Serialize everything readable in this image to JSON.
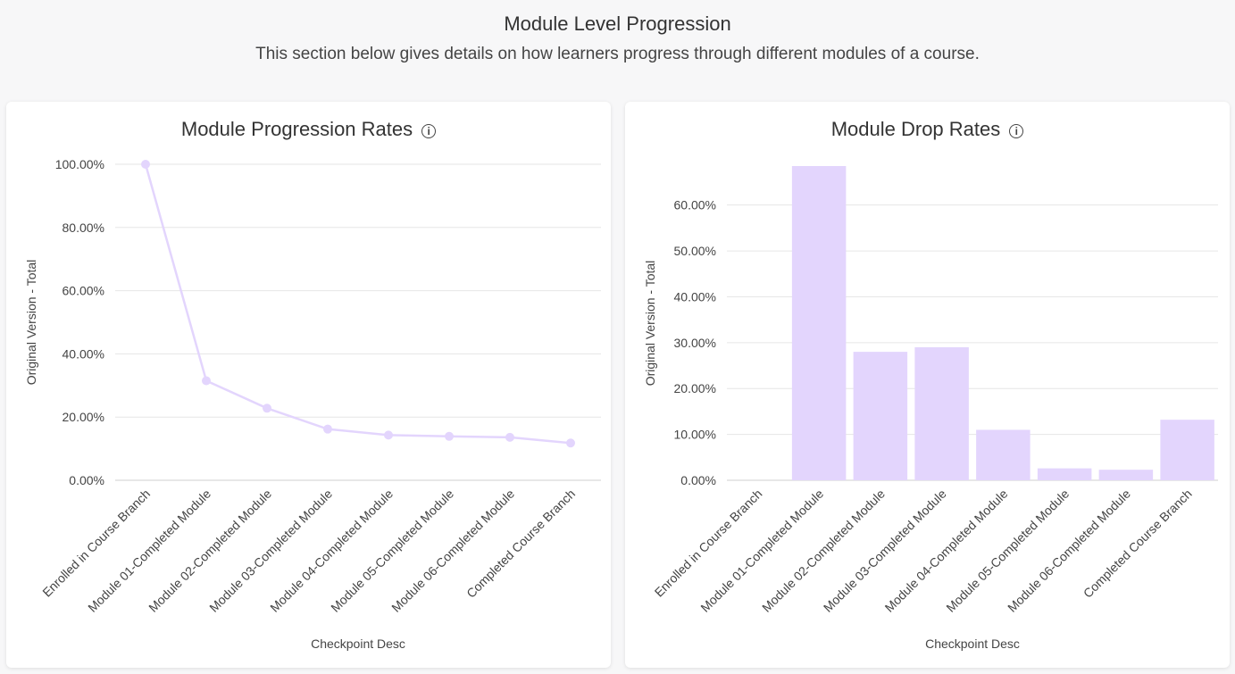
{
  "header": {
    "title": "Module Level Progression",
    "subtitle": "This section below gives details on how learners progress through different modules of a course."
  },
  "icons": {
    "info": "info-circle-icon"
  },
  "colors": {
    "series": "#e3d5fd",
    "line": "#e3d5fd",
    "grid": "#e6e6e6"
  },
  "chart_data": [
    {
      "type": "line",
      "title": "Module Progression Rates",
      "xlabel": "Checkpoint Desc",
      "ylabel": "Original Version - Total",
      "categories": [
        "Enrolled in Course Branch",
        "Module 01-Completed Module",
        "Module 02-Completed Module",
        "Module 03-Completed Module",
        "Module 04-Completed Module",
        "Module 05-Completed Module",
        "Module 06-Completed Module",
        "Completed Course Branch"
      ],
      "values": [
        100,
        31.5,
        22.8,
        16.2,
        14.3,
        13.9,
        13.6,
        11.8
      ],
      "ylim": [
        0,
        100
      ],
      "yticks": [
        0,
        20,
        40,
        60,
        80,
        100
      ],
      "ytick_labels": [
        "0.00%",
        "20.00%",
        "40.00%",
        "60.00%",
        "80.00%",
        "100.00%"
      ],
      "grid": true
    },
    {
      "type": "bar",
      "title": "Module Drop Rates",
      "xlabel": "Checkpoint Desc",
      "ylabel": "Original Version - Total",
      "categories": [
        "Enrolled in Course Branch",
        "Module 01-Completed Module",
        "Module 02-Completed Module",
        "Module 03-Completed Module",
        "Module 04-Completed Module",
        "Module 05-Completed Module",
        "Module 06-Completed Module",
        "Completed Course Branch"
      ],
      "values": [
        0,
        68.5,
        28.0,
        29.0,
        11.0,
        2.6,
        2.3,
        13.2
      ],
      "ylim": [
        0,
        68.5
      ],
      "yticks": [
        0,
        10,
        20,
        30,
        40,
        50,
        60
      ],
      "ytick_labels": [
        "0.00%",
        "10.00%",
        "20.00%",
        "30.00%",
        "40.00%",
        "50.00%",
        "60.00%"
      ],
      "grid": true
    }
  ]
}
